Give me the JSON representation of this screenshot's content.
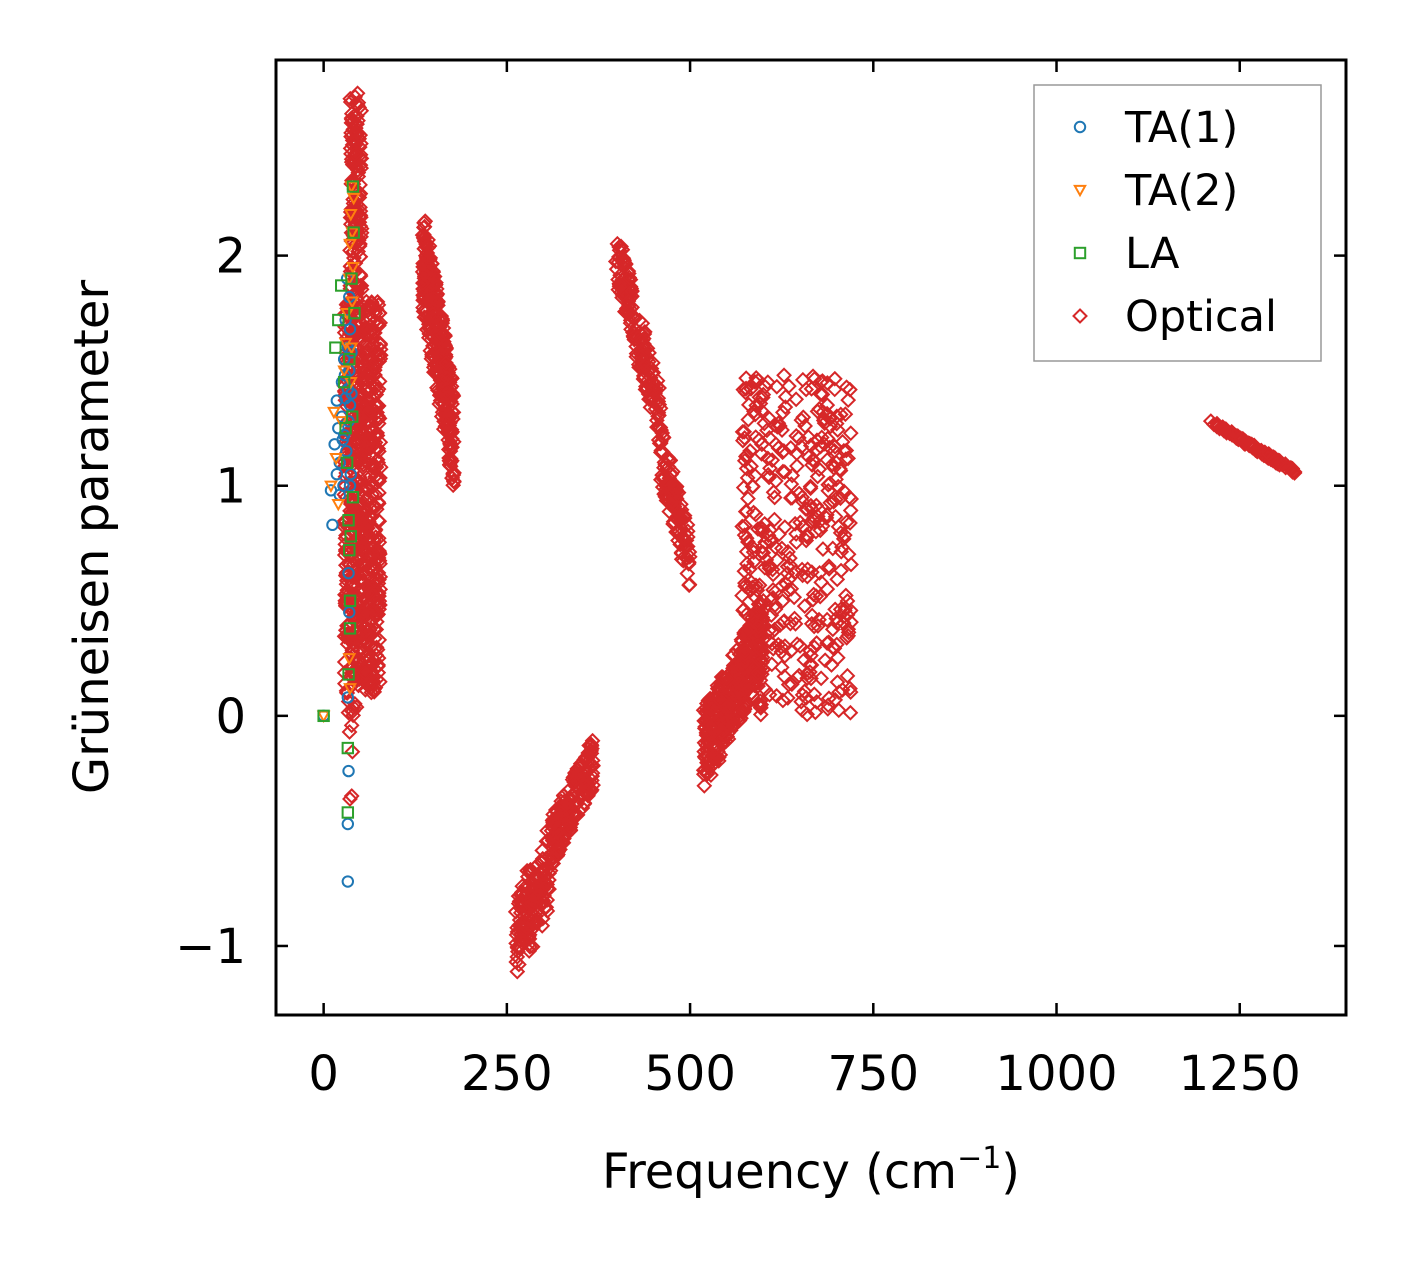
{
  "chart_data": {
    "type": "scatter",
    "title": "",
    "xlabel": "Frequency (cm",
    "xlabel_sup": "−1",
    "xlabel_close": ")",
    "ylabel": "Grüneisen parameter",
    "xlim": [
      -65,
      1395
    ],
    "ylim": [
      -1.3,
      2.85
    ],
    "xticks": [
      0,
      250,
      500,
      750,
      1000,
      1250
    ],
    "xtick_labels": [
      "0",
      "250",
      "500",
      "750",
      "1000",
      "1250"
    ],
    "yticks": [
      -1,
      0,
      1,
      2
    ],
    "ytick_labels": [
      "−1",
      "0",
      "1",
      "2"
    ],
    "grid": false,
    "legend_position": "top-right",
    "series": [
      {
        "name": "TA(1)",
        "marker": "circle",
        "color": "#1f77b4",
        "points": [
          [
            0,
            0
          ],
          [
            10,
            0.98
          ],
          [
            12,
            0.83
          ],
          [
            15,
            1.18
          ],
          [
            18,
            1.05
          ],
          [
            18,
            1.37
          ],
          [
            20,
            1.25
          ],
          [
            22,
            1.1
          ],
          [
            22,
            0.96
          ],
          [
            25,
            1.3
          ],
          [
            25,
            1.45
          ],
          [
            27,
            1.0
          ],
          [
            28,
            1.22
          ],
          [
            28,
            1.55
          ],
          [
            30,
            1.38
          ],
          [
            30,
            1.72
          ],
          [
            31,
            1.15
          ],
          [
            32,
            1.9
          ],
          [
            33,
            1.42
          ],
          [
            33,
            1.6
          ],
          [
            34,
            1.28
          ],
          [
            35,
            1.82
          ],
          [
            35,
            1.5
          ],
          [
            36,
            1.35
          ],
          [
            36,
            1.68
          ],
          [
            37,
            1.05
          ],
          [
            38,
            1.4
          ],
          [
            38,
            1.58
          ],
          [
            34,
            0.62
          ],
          [
            35,
            0.45
          ],
          [
            33,
            0.08
          ],
          [
            34,
            -0.24
          ],
          [
            33,
            -0.47
          ],
          [
            33,
            -0.72
          ],
          [
            36,
            1.0
          ],
          [
            29,
            1.48
          ],
          [
            26,
            1.2
          ]
        ]
      },
      {
        "name": "TA(2)",
        "marker": "triangle-down",
        "color": "#ff7f0e",
        "points": [
          [
            0,
            0
          ],
          [
            10,
            1.0
          ],
          [
            14,
            1.32
          ],
          [
            17,
            1.12
          ],
          [
            20,
            0.92
          ],
          [
            24,
            1.28
          ],
          [
            28,
            1.5
          ],
          [
            30,
            1.62
          ],
          [
            32,
            1.75
          ],
          [
            35,
            1.9
          ],
          [
            36,
            2.05
          ],
          [
            37,
            2.18
          ],
          [
            38,
            2.3
          ],
          [
            39,
            2.1
          ],
          [
            40,
            1.95
          ],
          [
            41,
            2.25
          ],
          [
            38,
            1.6
          ],
          [
            37,
            1.45
          ],
          [
            35,
            0.25
          ],
          [
            36,
            0.12
          ],
          [
            39,
            1.8
          ]
        ]
      },
      {
        "name": "LA",
        "marker": "square",
        "color": "#2ca02c",
        "points": [
          [
            0,
            0
          ],
          [
            16,
            1.6
          ],
          [
            20,
            1.72
          ],
          [
            24,
            1.87
          ],
          [
            28,
            1.45
          ],
          [
            30,
            1.25
          ],
          [
            32,
            1.1
          ],
          [
            34,
            0.85
          ],
          [
            35,
            0.72
          ],
          [
            36,
            0.5
          ],
          [
            34,
            0.18
          ],
          [
            33,
            -0.14
          ],
          [
            33,
            -0.42
          ],
          [
            35,
            1.55
          ],
          [
            38,
            1.9
          ],
          [
            40,
            2.3
          ],
          [
            41,
            2.1
          ],
          [
            42,
            1.75
          ],
          [
            39,
            1.3
          ],
          [
            40,
            0.95
          ],
          [
            37,
            0.78
          ],
          [
            36,
            0.38
          ]
        ]
      },
      {
        "name": "Optical",
        "marker": "diamond",
        "color": "#d62728",
        "clusters": [
          {
            "x": [
              28,
              78
            ],
            "y": [
              0.1,
              1.8
            ],
            "n": 700
          },
          {
            "x": [
              36,
              52
            ],
            "y": [
              1.8,
              2.72
            ],
            "n": 150
          },
          {
            "x": [
              30,
              48
            ],
            "y": [
              -0.4,
              0.1
            ],
            "n": 14
          },
          {
            "x": [
              135,
              178
            ],
            "y": [
              1.05,
              2.07
            ],
            "n": 320
          },
          {
            "x": [
              398,
              500
            ],
            "y": [
              0.65,
              2.02
            ],
            "n": 280
          },
          {
            "x": [
              262,
              368
            ],
            "y": [
              -1.1,
              -0.2
            ],
            "n": 320
          },
          {
            "x": [
              518,
              600
            ],
            "y": [
              -0.2,
              0.4
            ],
            "n": 380
          },
          {
            "x": [
              570,
              720
            ],
            "y": [
              0.0,
              1.48
            ],
            "n": 420
          },
          {
            "x": [
              1210,
              1325
            ],
            "y": [
              1.06,
              1.28
            ],
            "n": 110
          }
        ]
      }
    ]
  }
}
